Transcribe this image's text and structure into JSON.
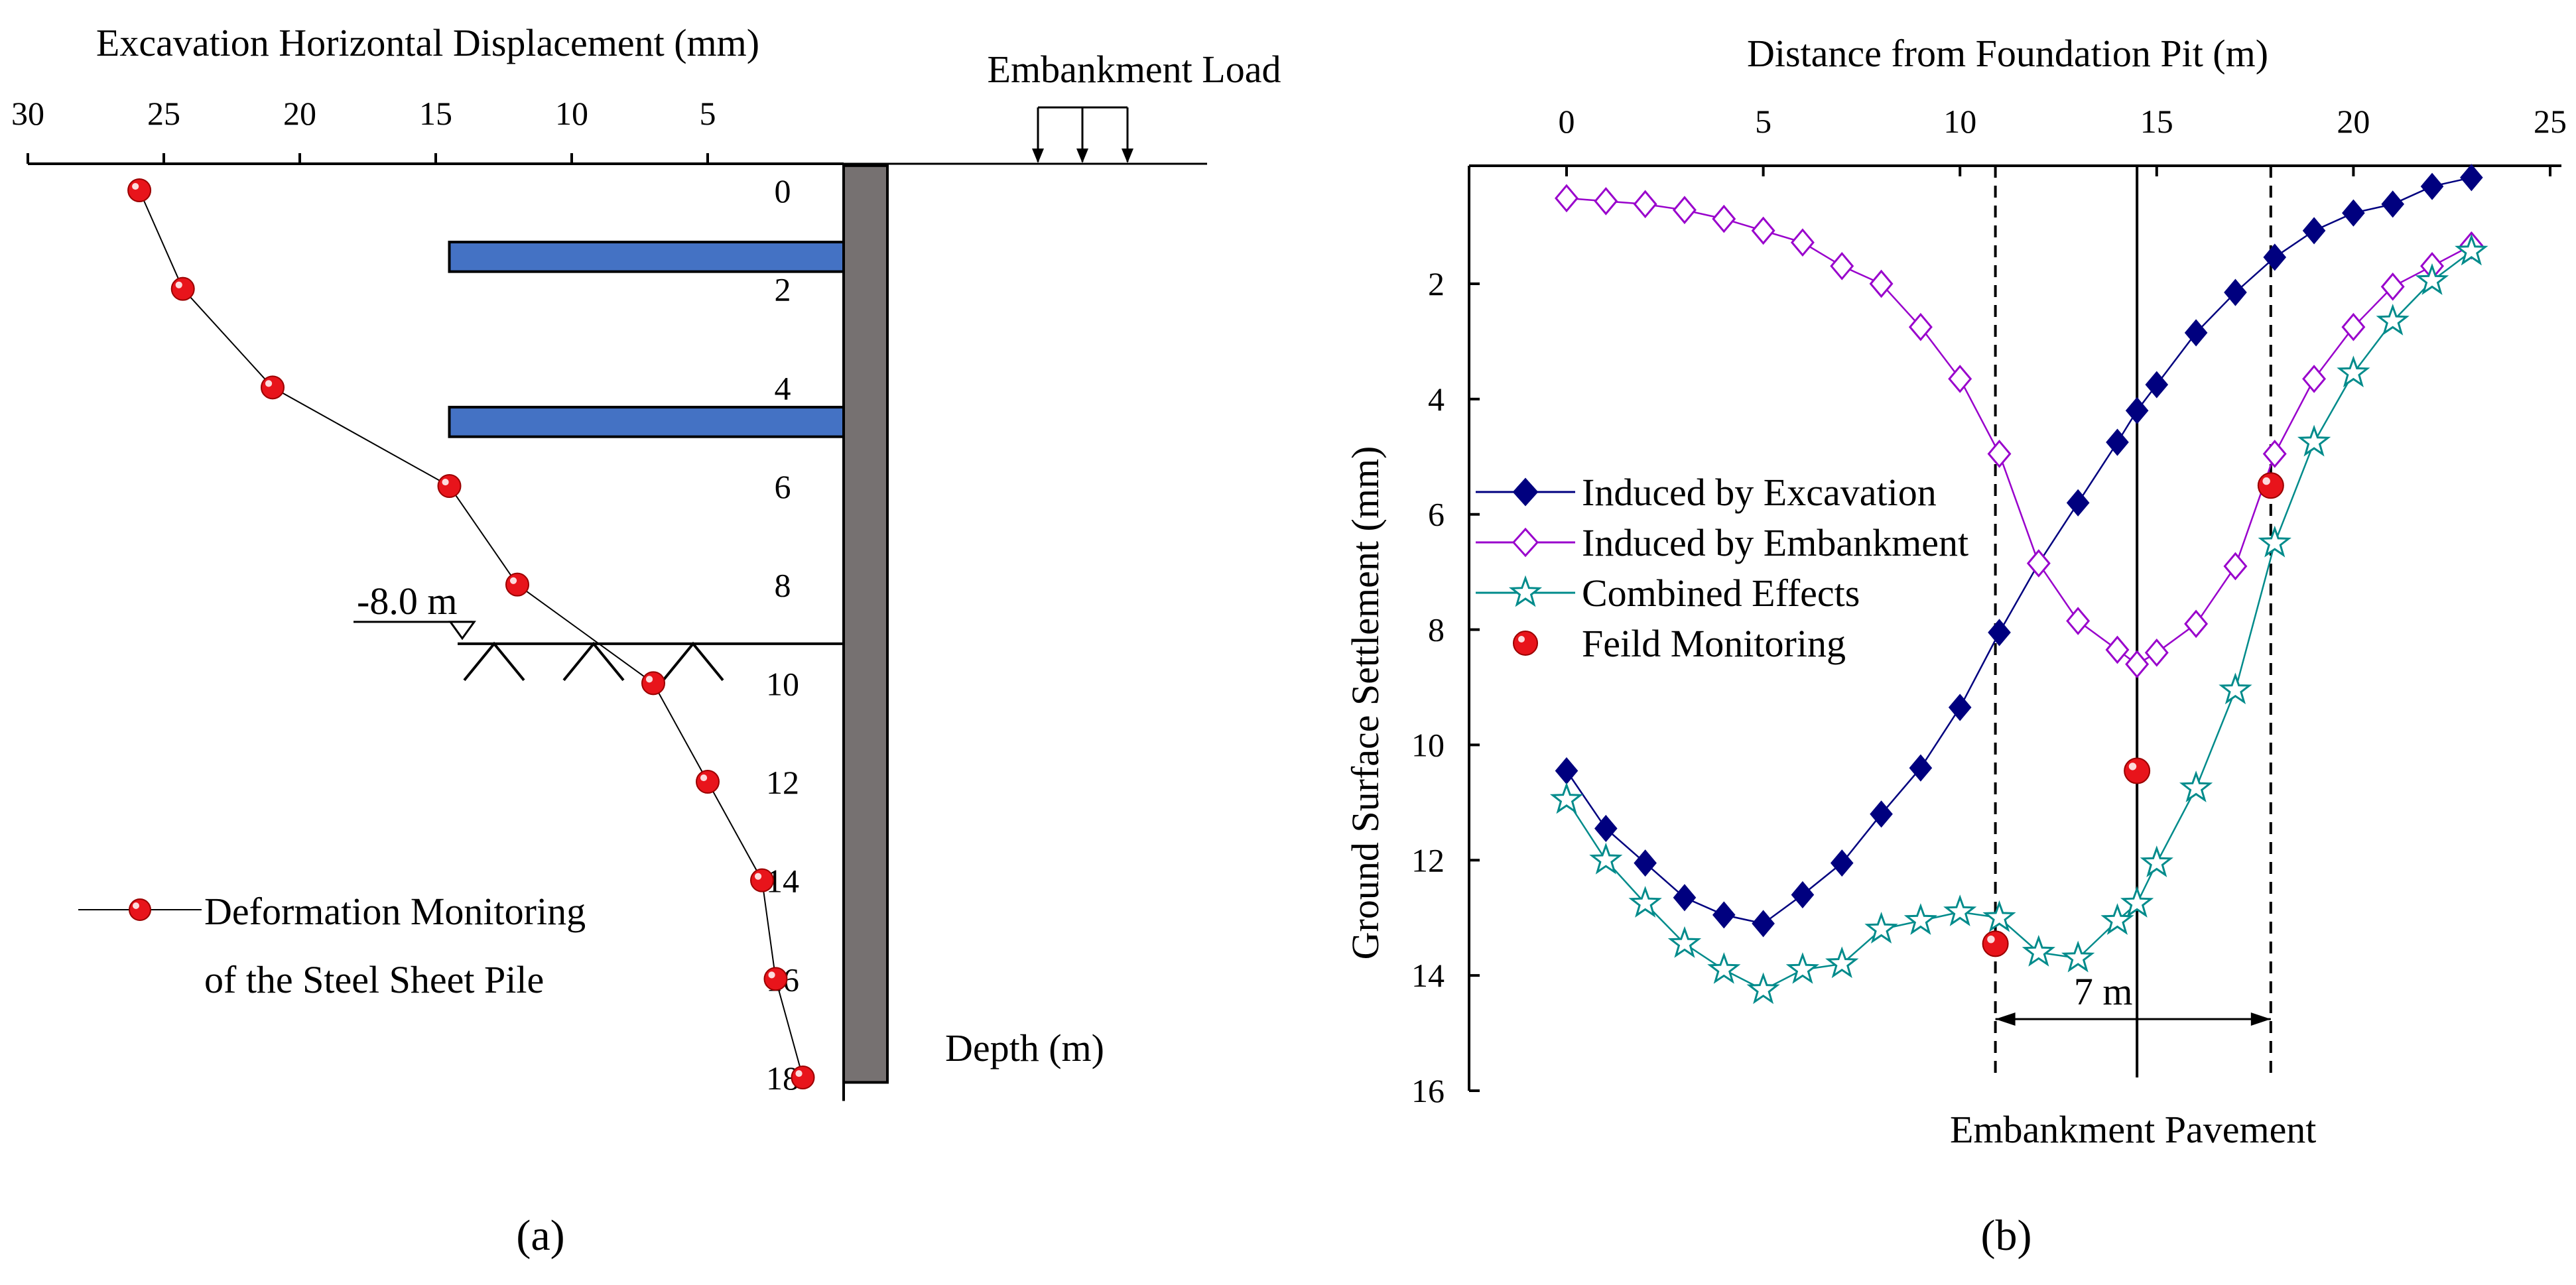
{
  "chart_data": [
    {
      "type": "scatter",
      "panel_label": "(a)",
      "title": "",
      "xlabel": "Excavation Horizontal Displacement (mm)",
      "ylabel": "Depth (m)",
      "xlim": [
        30,
        0
      ],
      "ylim": [
        0,
        18
      ],
      "x_ticks": [
        30,
        25,
        20,
        15,
        10,
        5
      ],
      "y_ticks": [
        0,
        2,
        4,
        6,
        8,
        10,
        12,
        14,
        16,
        18
      ],
      "series": [
        {
          "name": "Deformation Monitoring of the Steel Sheet Pile",
          "legend_lines": [
            "Deformation Monitoring",
            "of the Steel Sheet Pile"
          ],
          "color": "#e8141b",
          "x": [
            25.9,
            24.3,
            21.0,
            14.5,
            12.0,
            7.0,
            5.0,
            3.0,
            2.5,
            1.5
          ],
          "y": [
            0,
            2,
            4,
            6,
            8,
            10,
            12,
            14,
            16,
            18
          ]
        }
      ],
      "annotations": {
        "embankment_load": "Embankment Load",
        "excavation_level": "-8.0 m"
      },
      "struts": [
        {
          "name": "strut-1",
          "top_depth": 1.05,
          "bottom_depth": 1.65,
          "extent_mm": 14.5
        },
        {
          "name": "strut-2",
          "top_depth": 4.4,
          "bottom_depth": 5.0,
          "extent_mm": 14.5
        }
      ],
      "pile": {
        "top_depth": -0.5,
        "bottom_depth": 18.1
      },
      "excavation_bottom_depth": 9.2,
      "colors": {
        "strut": "#4472c4",
        "pile": "#767171",
        "marker": "#e8141b"
      }
    },
    {
      "type": "line",
      "panel_label": "(b)",
      "title": "",
      "xlabel": "Distance from Foundation Pit (m)",
      "ylabel": "Ground Surface Settlement (mm)",
      "xlim": [
        -2.5,
        25
      ],
      "ylim": [
        0,
        16
      ],
      "x_ticks": [
        0,
        5,
        10,
        15,
        20,
        25
      ],
      "y_ticks": [
        2,
        4,
        6,
        8,
        10,
        12,
        14,
        16
      ],
      "legend_position": "middle-left",
      "series": [
        {
          "name": "Induced by Excavation",
          "marker": "filled-diamond",
          "color": "#00007f",
          "x": [
            0,
            1,
            2,
            3,
            4,
            5,
            6,
            7,
            8,
            9,
            10,
            11,
            12,
            13,
            14,
            14.5,
            15,
            16,
            17,
            18,
            19,
            20,
            21,
            22,
            23
          ],
          "y": [
            10.45,
            11.45,
            12.05,
            12.65,
            12.95,
            13.1,
            12.6,
            12.05,
            11.2,
            10.4,
            9.35,
            8.05,
            6.85,
            5.8,
            4.75,
            4.2,
            3.75,
            2.85,
            2.15,
            1.55,
            1.1,
            0.8,
            0.65,
            0.35,
            0.2
          ]
        },
        {
          "name": "Induced by Embankment",
          "marker": "open-diamond",
          "color": "#9900cc",
          "x": [
            0,
            1,
            2,
            3,
            4,
            5,
            6,
            7,
            8,
            9,
            10,
            11,
            12,
            13,
            14,
            14.5,
            15,
            16,
            17,
            18,
            19,
            20,
            21,
            22,
            23
          ],
          "y": [
            0.55,
            0.6,
            0.65,
            0.75,
            0.9,
            1.1,
            1.3,
            1.7,
            2.0,
            2.75,
            3.65,
            4.95,
            6.85,
            7.85,
            8.35,
            8.6,
            8.4,
            7.9,
            6.9,
            4.95,
            3.65,
            2.75,
            2.05,
            1.7,
            1.35
          ]
        },
        {
          "name": "Combined Effects",
          "marker": "open-star",
          "color": "#008b8b",
          "x": [
            0,
            1,
            2,
            3,
            4,
            5,
            6,
            7,
            8,
            9,
            10,
            11,
            12,
            13,
            14,
            14.5,
            15,
            16,
            17,
            18,
            19,
            20,
            21,
            22,
            23
          ],
          "y": [
            10.95,
            12.0,
            12.75,
            13.45,
            13.9,
            14.25,
            13.9,
            13.8,
            13.2,
            13.05,
            12.9,
            13.0,
            13.6,
            13.7,
            13.05,
            12.75,
            12.05,
            10.75,
            9.05,
            6.5,
            4.75,
            3.55,
            2.65,
            1.95,
            1.45
          ]
        },
        {
          "name": "Feild Monitoring",
          "marker": "filled-circle",
          "color": "#e8141b",
          "x": [
            10.9,
            14.5,
            17.9
          ],
          "y": [
            13.45,
            10.45,
            5.5
          ]
        }
      ],
      "annotations": {
        "vertical_lines_x": [
          10.9,
          14.5,
          17.9
        ],
        "pavement_label": "Embankment Pavement",
        "pavement_width": "7 m"
      }
    }
  ]
}
